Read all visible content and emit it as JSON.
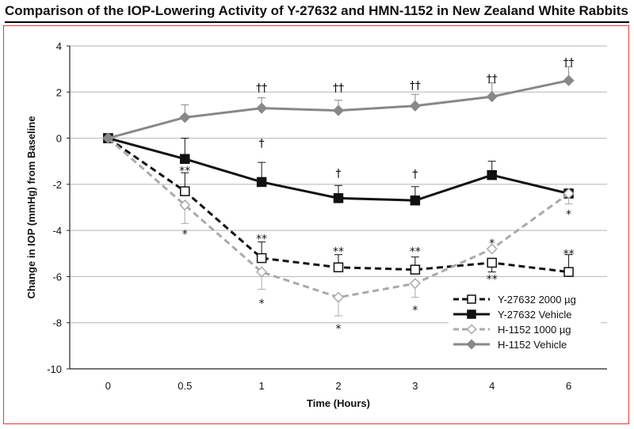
{
  "chart_data": {
    "type": "line",
    "title": "Comparison of the IOP-Lowering Activity of Y-27632 and HMN-1152 in New Zealand White Rabbits",
    "xlabel": "Time (Hours)",
    "ylabel": "Change in IOP (mmHg) from Baseline",
    "categories": [
      "0",
      "0.5",
      "1",
      "2",
      "3",
      "4",
      "6"
    ],
    "ylim": [
      -10,
      4
    ],
    "yticks": [
      4,
      2,
      0,
      -2,
      -4,
      -6,
      -8,
      -10
    ],
    "grid": true,
    "legend_position": "bottom-right",
    "series": [
      {
        "name": "Y-27632 2000 µg",
        "values": [
          0,
          -2.3,
          -5.2,
          -5.6,
          -5.7,
          -5.4,
          -5.8
        ],
        "error_up": [
          0,
          0.8,
          0.7,
          0.55,
          0.55,
          0.0,
          0.75
        ],
        "error_down": [
          0,
          0.0,
          0.0,
          0.0,
          0.0,
          0.4,
          0.0
        ],
        "color": "#111111",
        "style": "dashed",
        "marker": "square-open"
      },
      {
        "name": "Y-27632 Vehicle",
        "values": [
          0,
          -0.9,
          -1.9,
          -2.6,
          -2.7,
          -1.6,
          -2.4
        ],
        "error_up": [
          0,
          0.9,
          0.85,
          0.55,
          0.6,
          0.6,
          0.2
        ],
        "error_down": [
          0,
          0.0,
          0.0,
          0.0,
          0.0,
          0.0,
          0.0
        ],
        "color": "#111111",
        "style": "solid",
        "marker": "square-filled"
      },
      {
        "name": "H-1152 1000 µg",
        "values": [
          0,
          -2.9,
          -5.8,
          -6.9,
          -6.3,
          -4.8,
          -2.4
        ],
        "error_up": [
          0,
          0.0,
          0.0,
          0.0,
          0.0,
          0.0,
          0.0
        ],
        "error_down": [
          0,
          0.8,
          0.75,
          0.8,
          0.6,
          0.0,
          0.45
        ],
        "color": "#aaaaaa",
        "style": "dashed",
        "marker": "diamond-open"
      },
      {
        "name": "H-1152 Vehicle",
        "values": [
          0,
          0.9,
          1.3,
          1.2,
          1.4,
          1.8,
          2.5
        ],
        "error_up": [
          0,
          0.55,
          0.45,
          0.45,
          0.5,
          0.6,
          0.6
        ],
        "error_down": [
          0,
          0.0,
          0.0,
          0.0,
          0.0,
          0.0,
          0.0
        ],
        "color": "#888888",
        "style": "solid",
        "marker": "diamond-filled"
      }
    ],
    "annotations": [
      {
        "text": "††",
        "x": "1",
        "y": 2.2
      },
      {
        "text": "††",
        "x": "2",
        "y": 2.2
      },
      {
        "text": "††",
        "x": "3",
        "y": 2.3
      },
      {
        "text": "††",
        "x": "4",
        "y": 2.6
      },
      {
        "text": "††",
        "x": "6",
        "y": 3.3
      },
      {
        "text": "†",
        "x": "1",
        "y": -0.2
      },
      {
        "text": "†",
        "x": "2",
        "y": -1.5
      },
      {
        "text": "†",
        "x": "3",
        "y": -1.55
      },
      {
        "text": "**",
        "x": "0.5",
        "y": -1.4
      },
      {
        "text": "*",
        "x": "0.5",
        "y": -4.15
      },
      {
        "text": "**",
        "x": "1",
        "y": -4.35
      },
      {
        "text": "*",
        "x": "1",
        "y": -7.15
      },
      {
        "text": "**",
        "x": "2",
        "y": -4.9
      },
      {
        "text": "*",
        "x": "2",
        "y": -8.25
      },
      {
        "text": "**",
        "x": "3",
        "y": -4.9
      },
      {
        "text": "*",
        "x": "3",
        "y": -7.45
      },
      {
        "text": "*",
        "x": "4",
        "y": -4.55
      },
      {
        "text": "**",
        "x": "4",
        "y": -6.1
      },
      {
        "text": "**",
        "x": "6",
        "y": -5.0
      },
      {
        "text": "*",
        "x": "6",
        "y": -3.3
      }
    ]
  }
}
